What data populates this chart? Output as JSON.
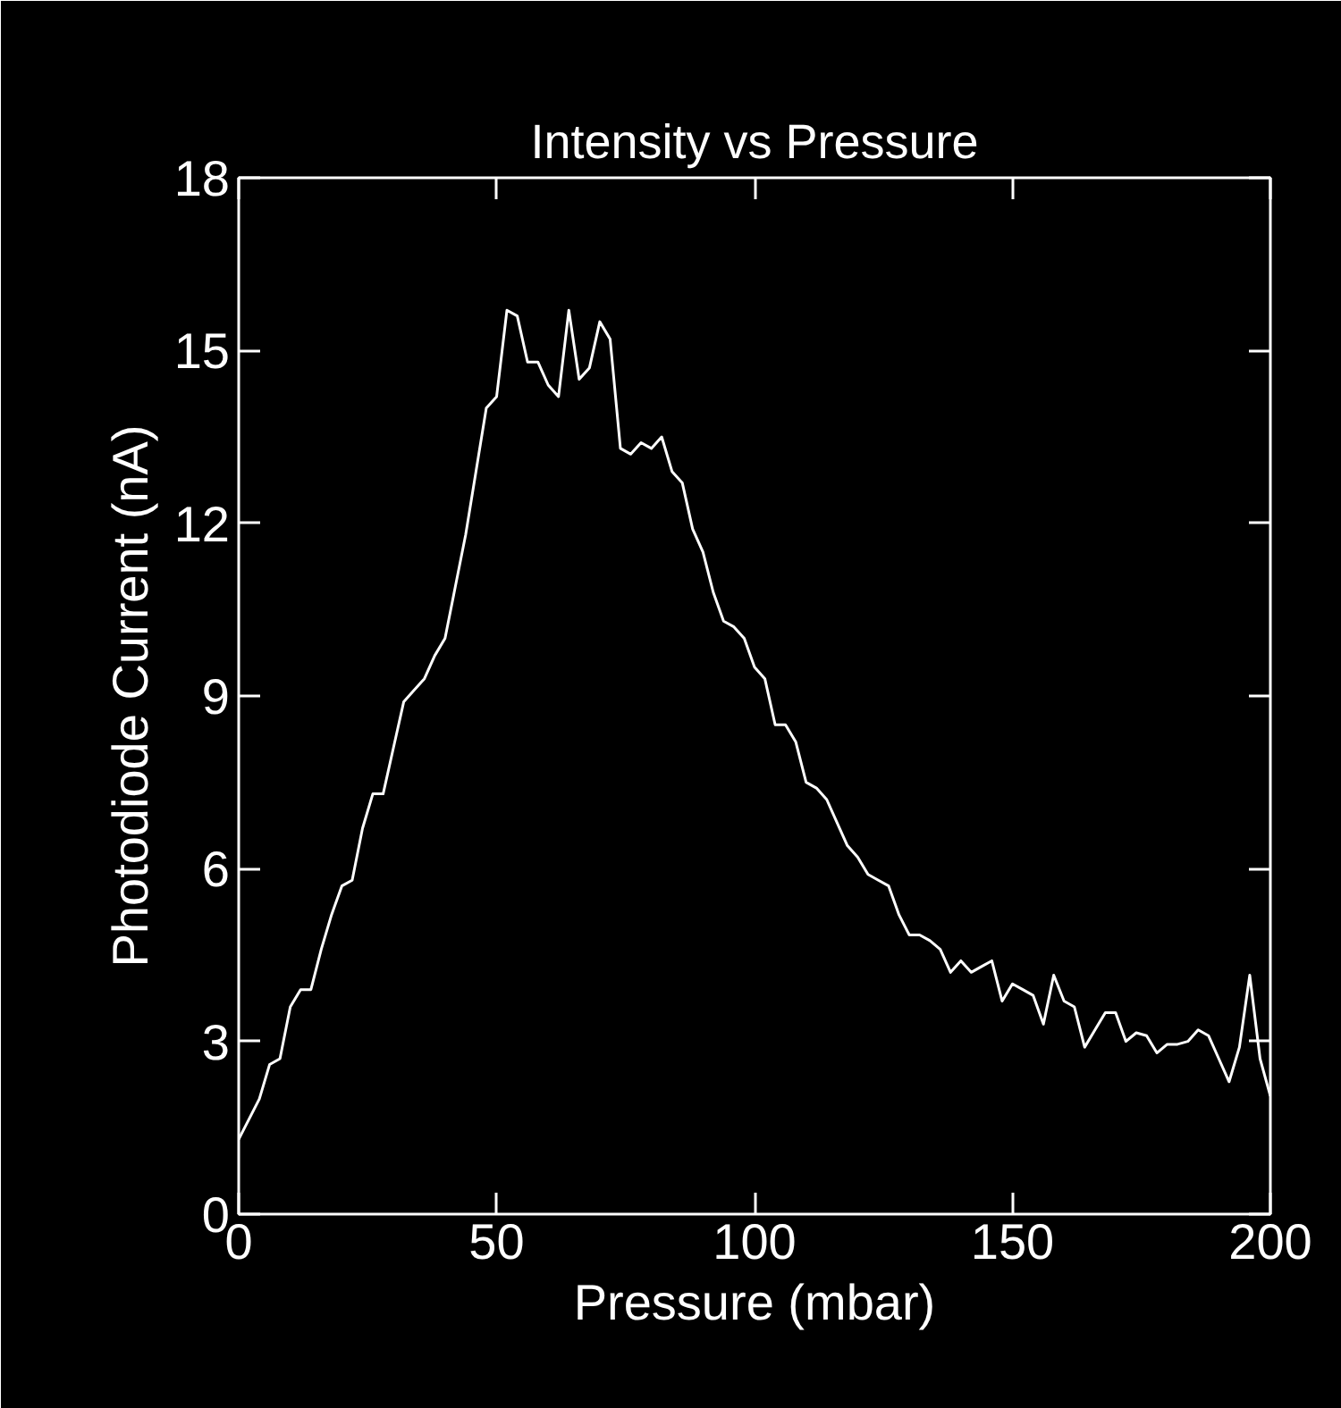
{
  "chart_data": {
    "type": "line",
    "title": "Intensity vs Pressure",
    "xlabel": "Pressure (mbar)",
    "ylabel": "Photodiode Current (nA)",
    "x": [
      0,
      4,
      6,
      8,
      10,
      12,
      14,
      16,
      18,
      20,
      22,
      24,
      26,
      28,
      30,
      32,
      34,
      36,
      38,
      40,
      42,
      44,
      46,
      48,
      50,
      52,
      54,
      56,
      58,
      60,
      62,
      64,
      66,
      68,
      70,
      72,
      74,
      76,
      78,
      80,
      82,
      84,
      86,
      88,
      90,
      92,
      94,
      96,
      98,
      100,
      102,
      104,
      106,
      108,
      110,
      112,
      114,
      116,
      118,
      120,
      122,
      124,
      126,
      128,
      130,
      132,
      134,
      136,
      138,
      140,
      142,
      144,
      146,
      148,
      150,
      152,
      154,
      156,
      158,
      160,
      162,
      164,
      166,
      168,
      170,
      172,
      174,
      176,
      178,
      180,
      182,
      184,
      186,
      188,
      190,
      192,
      194,
      196,
      198,
      200
    ],
    "series": [
      {
        "color": "#ffffff",
        "values": [
          1.3,
          2.0,
          2.6,
          2.7,
          3.6,
          3.9,
          3.9,
          4.6,
          5.2,
          5.7,
          5.8,
          6.7,
          7.3,
          7.3,
          8.1,
          8.9,
          9.1,
          9.3,
          9.7,
          10.0,
          10.9,
          11.8,
          12.9,
          14.0,
          14.2,
          15.7,
          15.6,
          14.8,
          14.8,
          14.4,
          14.2,
          15.7,
          14.5,
          14.7,
          15.5,
          15.2,
          13.3,
          13.2,
          13.4,
          13.3,
          13.5,
          12.9,
          12.7,
          11.9,
          11.5,
          10.8,
          10.3,
          10.2,
          10.0,
          9.5,
          9.3,
          8.5,
          8.5,
          8.2,
          7.5,
          7.4,
          7.2,
          6.8,
          6.4,
          6.2,
          5.9,
          5.8,
          5.7,
          5.2,
          4.85,
          4.85,
          4.75,
          4.6,
          4.2,
          4.4,
          4.2,
          4.3,
          4.4,
          3.7,
          4.0,
          3.9,
          3.8,
          3.3,
          4.15,
          3.7,
          3.6,
          2.9,
          3.2,
          3.5,
          3.5,
          3.0,
          3.15,
          3.1,
          2.8,
          2.95,
          2.95,
          3.0,
          3.2,
          3.1,
          2.7,
          2.3,
          2.9,
          4.15,
          2.7,
          2.05
        ]
      }
    ],
    "xlim": [
      0,
      200
    ],
    "ylim": [
      0,
      18
    ],
    "xticks": [
      0,
      50,
      100,
      150,
      200
    ],
    "yticks": [
      0,
      3,
      6,
      9,
      12,
      15,
      18
    ],
    "marker": "none",
    "line_style": "solid"
  }
}
